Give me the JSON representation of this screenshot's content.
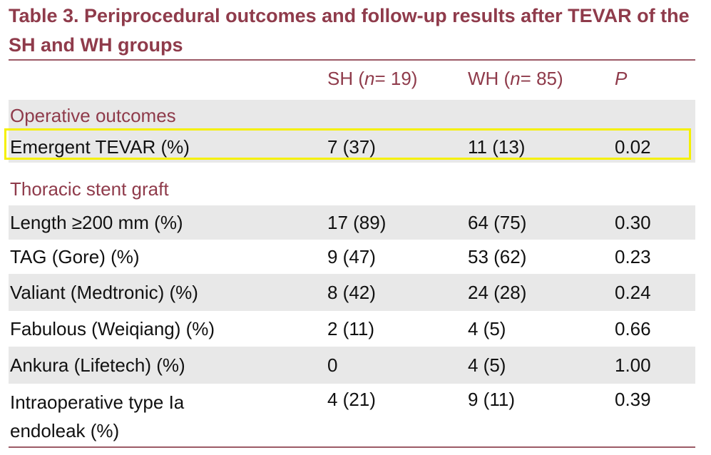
{
  "table": {
    "title": "Table 3.  Periprocedural outcomes and follow-up results after TEVAR of the SH and WH groups",
    "header": {
      "col0": "",
      "col1_prefix": "SH (",
      "col1_n": "n",
      "col1_suffix": " = 19)",
      "col2_prefix": "WH (",
      "col2_n": "n",
      "col2_suffix": " = 85)",
      "col3": "P"
    },
    "sections": {
      "operative": "Operative outcomes",
      "stent": "Thoracic stent graft"
    },
    "rows": [
      {
        "label": "Emergent TEVAR (%)",
        "sh": "7 (37)",
        "wh": "11 (13)",
        "p": "0.02"
      },
      {
        "label": "Length ≥200 mm (%)",
        "sh": "17 (89)",
        "wh": "64 (75)",
        "p": "0.30"
      },
      {
        "label": "TAG (Gore) (%)",
        "sh": "9 (47)",
        "wh": "53 (62)",
        "p": "0.23"
      },
      {
        "label": "Valiant (Medtronic) (%)",
        "sh": "8 (42)",
        "wh": "24 (28)",
        "p": "0.24"
      },
      {
        "label": "Fabulous (Weiqiang) (%)",
        "sh": "2 (11)",
        "wh": "4 (5)",
        "p": "0.66"
      },
      {
        "label": "Ankura (Lifetech) (%)",
        "sh": "0",
        "wh": "4 (5)",
        "p": "1.00"
      },
      {
        "label": "Intraoperative type Ia endoleak (%)",
        "sh": "4 (21)",
        "wh": "9 (11)",
        "p": "0.39"
      }
    ]
  },
  "colors": {
    "accent": "#8f3b4b",
    "shade": "#e8e8e8",
    "highlight": "#f5f000"
  }
}
